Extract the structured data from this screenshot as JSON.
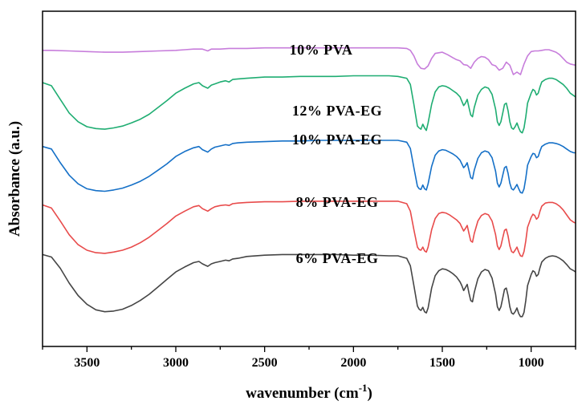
{
  "chart_data": {
    "type": "line",
    "xlabel": "wavenumber (cm",
    "xlabel_sup": "-1",
    "xlabel_close": ")",
    "ylabel": "Absorbance (a.u.)",
    "xlim": [
      3750,
      750
    ],
    "x_reversed": true,
    "x_ticks": [
      3500,
      3000,
      2500,
      2000,
      1500,
      1000
    ],
    "y_ticks": "none",
    "ylim": [
      -0.5,
      4.9
    ],
    "grid": false,
    "legend": "inline labels above each trace",
    "series": [
      {
        "name": "10% PVA",
        "color": "#c77ddb",
        "offset": 4.0,
        "x": [
          3750,
          3700,
          3600,
          3500,
          3400,
          3300,
          3200,
          3100,
          3000,
          2950,
          2900,
          2850,
          2820,
          2800,
          2750,
          2700,
          2600,
          2500,
          2400,
          2200,
          2000,
          1800,
          1750,
          1700,
          1680,
          1660,
          1640,
          1620,
          1600,
          1580,
          1560,
          1540,
          1500,
          1470,
          1440,
          1420,
          1400,
          1380,
          1360,
          1340,
          1320,
          1300,
          1280,
          1260,
          1240,
          1220,
          1200,
          1180,
          1160,
          1140,
          1120,
          1100,
          1080,
          1060,
          1040,
          1020,
          1000,
          980,
          960,
          940,
          920,
          900,
          880,
          860,
          840,
          820,
          800,
          780,
          750
        ],
        "y": [
          0.27,
          0.27,
          0.26,
          0.25,
          0.24,
          0.24,
          0.25,
          0.26,
          0.27,
          0.28,
          0.29,
          0.29,
          0.26,
          0.29,
          0.29,
          0.3,
          0.3,
          0.31,
          0.31,
          0.31,
          0.31,
          0.31,
          0.31,
          0.3,
          0.27,
          0.18,
          0.05,
          -0.02,
          -0.03,
          0.02,
          0.14,
          0.22,
          0.24,
          0.2,
          0.15,
          0.12,
          0.1,
          0.04,
          0.03,
          -0.02,
          0.08,
          0.14,
          0.17,
          0.16,
          0.12,
          0.04,
          0.02,
          -0.05,
          -0.02,
          0.08,
          0.03,
          -0.12,
          -0.08,
          -0.12,
          0.05,
          0.18,
          0.25,
          0.26,
          0.26,
          0.27,
          0.28,
          0.28,
          0.26,
          0.24,
          0.2,
          0.14,
          0.08,
          0.05,
          0.03
        ]
      },
      {
        "name": "12% PVA-EG",
        "color": "#1fad72",
        "offset": 3.0,
        "x": [
          3750,
          3700,
          3650,
          3600,
          3550,
          3500,
          3450,
          3400,
          3350,
          3300,
          3250,
          3200,
          3150,
          3100,
          3050,
          3000,
          2950,
          2900,
          2870,
          2850,
          2820,
          2800,
          2780,
          2750,
          2720,
          2700,
          2680,
          2650,
          2600,
          2500,
          2400,
          2300,
          2200,
          2100,
          2000,
          1900,
          1800,
          1750,
          1700,
          1680,
          1660,
          1640,
          1630,
          1620,
          1610,
          1600,
          1590,
          1580,
          1560,
          1540,
          1520,
          1500,
          1480,
          1460,
          1440,
          1420,
          1400,
          1390,
          1380,
          1370,
          1360,
          1350,
          1340,
          1330,
          1320,
          1300,
          1280,
          1260,
          1240,
          1220,
          1200,
          1190,
          1180,
          1170,
          1160,
          1150,
          1140,
          1130,
          1120,
          1110,
          1100,
          1090,
          1080,
          1070,
          1060,
          1050,
          1040,
          1030,
          1020,
          1000,
          990,
          980,
          970,
          960,
          950,
          940,
          920,
          900,
          880,
          860,
          840,
          820,
          800,
          780,
          760,
          750
        ],
        "y": [
          0.75,
          0.7,
          0.48,
          0.26,
          0.12,
          0.04,
          0.01,
          0.0,
          0.02,
          0.05,
          0.1,
          0.16,
          0.24,
          0.35,
          0.46,
          0.58,
          0.66,
          0.73,
          0.75,
          0.7,
          0.66,
          0.71,
          0.73,
          0.76,
          0.78,
          0.76,
          0.8,
          0.81,
          0.82,
          0.84,
          0.84,
          0.85,
          0.85,
          0.85,
          0.86,
          0.86,
          0.86,
          0.85,
          0.82,
          0.72,
          0.4,
          0.05,
          0.02,
          0.0,
          0.08,
          0.02,
          -0.02,
          0.1,
          0.4,
          0.6,
          0.68,
          0.7,
          0.69,
          0.66,
          0.62,
          0.58,
          0.52,
          0.45,
          0.38,
          0.42,
          0.48,
          0.35,
          0.23,
          0.2,
          0.35,
          0.55,
          0.64,
          0.68,
          0.66,
          0.56,
          0.32,
          0.12,
          0.06,
          0.12,
          0.26,
          0.4,
          0.42,
          0.3,
          0.12,
          0.02,
          0.0,
          0.04,
          0.1,
          0.02,
          -0.04,
          -0.06,
          0.02,
          0.2,
          0.42,
          0.58,
          0.64,
          0.62,
          0.55,
          0.58,
          0.68,
          0.76,
          0.8,
          0.82,
          0.82,
          0.8,
          0.76,
          0.72,
          0.66,
          0.58,
          0.54,
          0.52
        ]
      },
      {
        "name": "10% PVA-EG",
        "color": "#1570c7",
        "offset": 2.0,
        "x": [
          3750,
          3700,
          3650,
          3600,
          3550,
          3500,
          3450,
          3400,
          3350,
          3300,
          3250,
          3200,
          3150,
          3100,
          3050,
          3000,
          2950,
          2900,
          2870,
          2850,
          2820,
          2800,
          2780,
          2750,
          2720,
          2700,
          2680,
          2650,
          2600,
          2500,
          2400,
          2300,
          2200,
          2100,
          2000,
          1900,
          1800,
          1750,
          1700,
          1680,
          1660,
          1640,
          1630,
          1620,
          1610,
          1600,
          1590,
          1580,
          1560,
          1540,
          1520,
          1500,
          1480,
          1460,
          1440,
          1420,
          1400,
          1390,
          1380,
          1370,
          1360,
          1350,
          1340,
          1330,
          1320,
          1300,
          1280,
          1260,
          1240,
          1220,
          1200,
          1190,
          1180,
          1170,
          1160,
          1150,
          1140,
          1130,
          1120,
          1110,
          1100,
          1090,
          1080,
          1070,
          1060,
          1050,
          1040,
          1030,
          1020,
          1000,
          990,
          980,
          970,
          960,
          950,
          940,
          920,
          900,
          880,
          860,
          840,
          820,
          800,
          780,
          760,
          750
        ],
        "y": [
          0.72,
          0.68,
          0.46,
          0.26,
          0.12,
          0.04,
          0.01,
          0.0,
          0.02,
          0.05,
          0.1,
          0.16,
          0.24,
          0.34,
          0.44,
          0.56,
          0.64,
          0.7,
          0.72,
          0.67,
          0.63,
          0.68,
          0.71,
          0.73,
          0.75,
          0.74,
          0.77,
          0.78,
          0.79,
          0.8,
          0.81,
          0.81,
          0.82,
          0.82,
          0.82,
          0.82,
          0.82,
          0.82,
          0.79,
          0.69,
          0.38,
          0.08,
          0.04,
          0.03,
          0.1,
          0.04,
          0.02,
          0.12,
          0.4,
          0.58,
          0.65,
          0.67,
          0.66,
          0.63,
          0.6,
          0.56,
          0.5,
          0.44,
          0.38,
          0.41,
          0.46,
          0.34,
          0.22,
          0.2,
          0.34,
          0.53,
          0.62,
          0.65,
          0.63,
          0.54,
          0.32,
          0.13,
          0.07,
          0.13,
          0.26,
          0.38,
          0.4,
          0.29,
          0.13,
          0.04,
          0.02,
          0.06,
          0.11,
          0.04,
          -0.02,
          -0.03,
          0.04,
          0.21,
          0.42,
          0.56,
          0.61,
          0.6,
          0.54,
          0.56,
          0.65,
          0.72,
          0.76,
          0.78,
          0.78,
          0.77,
          0.75,
          0.72,
          0.68,
          0.64,
          0.62,
          0.62
        ]
      },
      {
        "name": "8% PVA-EG",
        "color": "#e84b4b",
        "offset": 1.0,
        "x": [
          3750,
          3700,
          3650,
          3600,
          3550,
          3500,
          3450,
          3400,
          3350,
          3300,
          3250,
          3200,
          3150,
          3100,
          3050,
          3000,
          2950,
          2900,
          2870,
          2850,
          2820,
          2800,
          2780,
          2750,
          2720,
          2700,
          2680,
          2650,
          2600,
          2500,
          2400,
          2300,
          2200,
          2100,
          2000,
          1900,
          1800,
          1750,
          1700,
          1680,
          1660,
          1640,
          1630,
          1620,
          1610,
          1600,
          1590,
          1580,
          1560,
          1540,
          1520,
          1500,
          1480,
          1460,
          1440,
          1420,
          1400,
          1390,
          1380,
          1370,
          1360,
          1350,
          1340,
          1330,
          1320,
          1300,
          1280,
          1260,
          1240,
          1220,
          1200,
          1190,
          1180,
          1170,
          1160,
          1150,
          1140,
          1130,
          1120,
          1110,
          1100,
          1090,
          1080,
          1070,
          1060,
          1050,
          1040,
          1030,
          1020,
          1000,
          990,
          980,
          970,
          960,
          950,
          940,
          920,
          900,
          880,
          860,
          840,
          820,
          800,
          780,
          760,
          750
        ],
        "y": [
          0.78,
          0.73,
          0.52,
          0.3,
          0.14,
          0.05,
          0.01,
          0.0,
          0.02,
          0.05,
          0.1,
          0.17,
          0.26,
          0.37,
          0.48,
          0.6,
          0.68,
          0.75,
          0.77,
          0.72,
          0.68,
          0.72,
          0.75,
          0.77,
          0.78,
          0.77,
          0.8,
          0.81,
          0.82,
          0.83,
          0.83,
          0.84,
          0.84,
          0.84,
          0.84,
          0.84,
          0.84,
          0.84,
          0.8,
          0.68,
          0.38,
          0.1,
          0.06,
          0.05,
          0.1,
          0.04,
          0.02,
          0.1,
          0.38,
          0.56,
          0.64,
          0.66,
          0.65,
          0.62,
          0.58,
          0.54,
          0.48,
          0.42,
          0.36,
          0.4,
          0.45,
          0.32,
          0.2,
          0.18,
          0.32,
          0.52,
          0.61,
          0.64,
          0.62,
          0.52,
          0.3,
          0.12,
          0.06,
          0.12,
          0.25,
          0.37,
          0.39,
          0.28,
          0.12,
          0.03,
          0.01,
          0.05,
          0.1,
          0.02,
          -0.04,
          -0.05,
          0.03,
          0.2,
          0.42,
          0.58,
          0.63,
          0.61,
          0.55,
          0.58,
          0.68,
          0.76,
          0.81,
          0.82,
          0.82,
          0.8,
          0.76,
          0.7,
          0.62,
          0.54,
          0.5,
          0.49
        ]
      },
      {
        "name": "6% PVA-EG",
        "color": "#454545",
        "offset": 0.0,
        "x": [
          3750,
          3700,
          3650,
          3600,
          3550,
          3500,
          3450,
          3400,
          3350,
          3300,
          3250,
          3200,
          3150,
          3100,
          3050,
          3000,
          2950,
          2900,
          2870,
          2850,
          2820,
          2800,
          2780,
          2750,
          2720,
          2700,
          2680,
          2650,
          2600,
          2500,
          2400,
          2300,
          2200,
          2100,
          2000,
          1900,
          1800,
          1750,
          1700,
          1680,
          1660,
          1640,
          1630,
          1620,
          1610,
          1600,
          1590,
          1580,
          1560,
          1540,
          1520,
          1500,
          1480,
          1460,
          1440,
          1420,
          1400,
          1390,
          1380,
          1370,
          1360,
          1350,
          1340,
          1330,
          1320,
          1300,
          1280,
          1260,
          1240,
          1220,
          1200,
          1190,
          1180,
          1170,
          1160,
          1150,
          1140,
          1130,
          1120,
          1110,
          1100,
          1090,
          1080,
          1070,
          1060,
          1050,
          1040,
          1030,
          1020,
          1000,
          990,
          980,
          970,
          960,
          950,
          940,
          920,
          900,
          880,
          860,
          840,
          820,
          800,
          780,
          760,
          750
        ],
        "y": [
          0.98,
          0.94,
          0.76,
          0.52,
          0.32,
          0.18,
          0.09,
          0.06,
          0.07,
          0.1,
          0.16,
          0.24,
          0.34,
          0.46,
          0.58,
          0.7,
          0.78,
          0.85,
          0.87,
          0.83,
          0.79,
          0.83,
          0.85,
          0.87,
          0.89,
          0.88,
          0.91,
          0.92,
          0.95,
          0.97,
          0.98,
          0.98,
          0.98,
          0.98,
          0.97,
          0.97,
          0.96,
          0.96,
          0.92,
          0.8,
          0.48,
          0.15,
          0.1,
          0.08,
          0.13,
          0.06,
          0.04,
          0.12,
          0.44,
          0.64,
          0.72,
          0.75,
          0.74,
          0.71,
          0.67,
          0.62,
          0.54,
          0.48,
          0.4,
          0.45,
          0.5,
          0.36,
          0.24,
          0.22,
          0.37,
          0.59,
          0.7,
          0.74,
          0.72,
          0.6,
          0.34,
          0.14,
          0.08,
          0.14,
          0.28,
          0.42,
          0.44,
          0.32,
          0.14,
          0.04,
          0.02,
          0.06,
          0.12,
          0.03,
          -0.02,
          -0.02,
          0.05,
          0.24,
          0.48,
          0.66,
          0.72,
          0.7,
          0.63,
          0.66,
          0.77,
          0.86,
          0.92,
          0.95,
          0.96,
          0.95,
          0.92,
          0.88,
          0.82,
          0.75,
          0.72,
          0.7
        ]
      }
    ]
  }
}
